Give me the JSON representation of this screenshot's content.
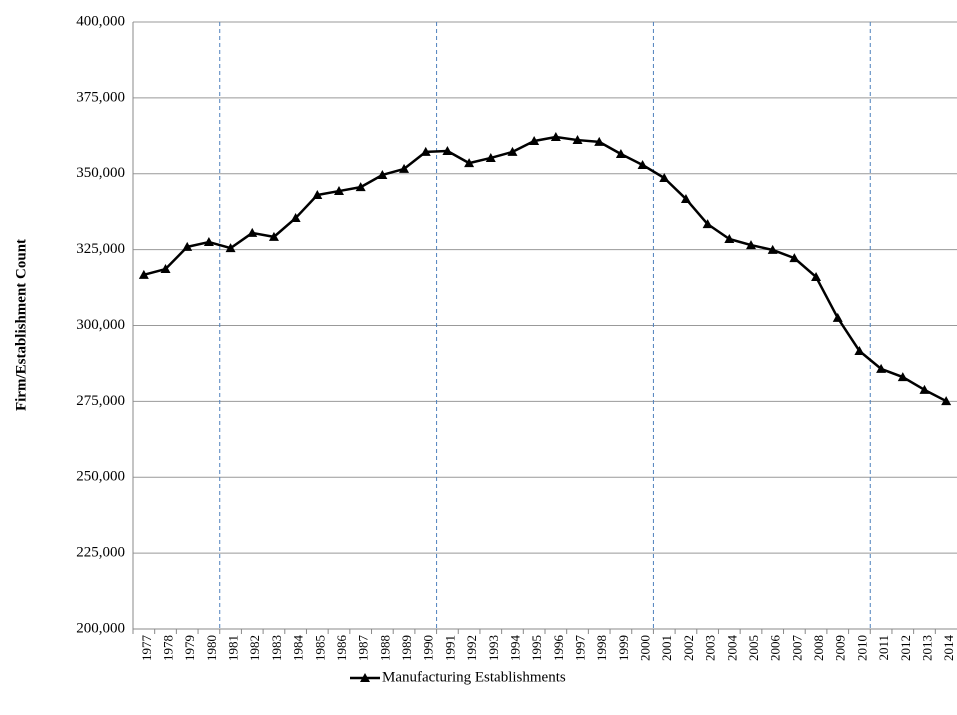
{
  "chart_data": {
    "type": "line",
    "y_label": "Firm/Establishment Count",
    "categories": [
      "1977",
      "1978",
      "1979",
      "1980",
      "1981",
      "1982",
      "1983",
      "1984",
      "1985",
      "1986",
      "1987",
      "1988",
      "1989",
      "1990",
      "1991",
      "1992",
      "1993",
      "1994",
      "1995",
      "1996",
      "1997",
      "1998",
      "1999",
      "2000",
      "2001",
      "2002",
      "2003",
      "2004",
      "2005",
      "2006",
      "2007",
      "2008",
      "2009",
      "2010",
      "2011",
      "2012",
      "2013",
      "2014"
    ],
    "series": [
      {
        "name": "Manufacturing Establishments",
        "color": "#000000",
        "values": [
          316700,
          318600,
          325900,
          327500,
          325500,
          330500,
          329200,
          335400,
          343000,
          344300,
          345600,
          349600,
          351600,
          357200,
          357500,
          353500,
          355200,
          357200,
          360800,
          362100,
          361100,
          360500,
          356500,
          352900,
          348600,
          341700,
          333400,
          328500,
          326500,
          324900,
          322200,
          316000,
          302500,
          291600,
          285700,
          283000,
          278800,
          275100
        ]
      }
    ],
    "ylim": [
      200000,
      400000
    ],
    "yticks": [
      {
        "value": 200000,
        "label": "200,000"
      },
      {
        "value": 225000,
        "label": "225,000"
      },
      {
        "value": 250000,
        "label": "250,000"
      },
      {
        "value": 275000,
        "label": "275,000"
      },
      {
        "value": 300000,
        "label": "300,000"
      },
      {
        "value": 325000,
        "label": "325,000"
      },
      {
        "value": 350000,
        "label": "350,000"
      },
      {
        "value": 375000,
        "label": "375,000"
      },
      {
        "value": 400000,
        "label": "400,000"
      }
    ],
    "grid": true,
    "legend": "bottom"
  }
}
